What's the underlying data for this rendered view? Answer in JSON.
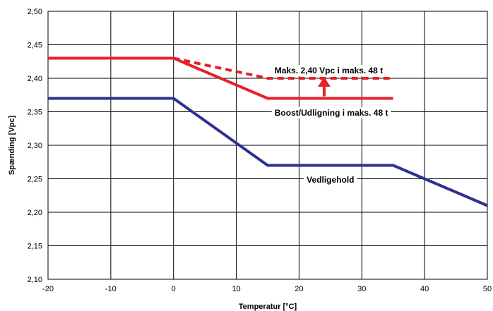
{
  "chart_data": {
    "type": "line",
    "xlabel": "Temperatur [°C]",
    "ylabel": "Spænding [Vpc]",
    "xlim": [
      -20,
      50
    ],
    "ylim": [
      2.1,
      2.5
    ],
    "grid": true,
    "x_ticks": [
      -20,
      -10,
      0,
      10,
      20,
      30,
      40,
      50
    ],
    "y_ticks": [
      2.1,
      2.15,
      2.2,
      2.25,
      2.3,
      2.35,
      2.4,
      2.45,
      2.5
    ],
    "y_tick_labels": [
      "2,10",
      "2,15",
      "2,20",
      "2,25",
      "2,30",
      "2,35",
      "2,40",
      "2,45",
      "2,50"
    ],
    "series": [
      {
        "name": "Maks. 2,40 Vpc i maks. 48 t",
        "color": "#e8202a",
        "style": "dashed",
        "points": [
          [
            0,
            2.43
          ],
          [
            15,
            2.4
          ],
          [
            35,
            2.4
          ]
        ]
      },
      {
        "name": "Boost/Udligning i maks. 48 t",
        "color": "#e8202a",
        "style": "solid",
        "points": [
          [
            -20,
            2.43
          ],
          [
            0,
            2.43
          ],
          [
            15,
            2.37
          ],
          [
            35,
            2.37
          ]
        ]
      },
      {
        "name": "Vedligehold",
        "color": "#2d3192",
        "style": "solid",
        "points": [
          [
            -20,
            2.37
          ],
          [
            0,
            2.37
          ],
          [
            15,
            2.27
          ],
          [
            35,
            2.27
          ],
          [
            50,
            2.21
          ]
        ]
      }
    ],
    "arrow": {
      "x": 24,
      "from": 2.373,
      "to": 2.4,
      "color": "#e8202a"
    }
  }
}
